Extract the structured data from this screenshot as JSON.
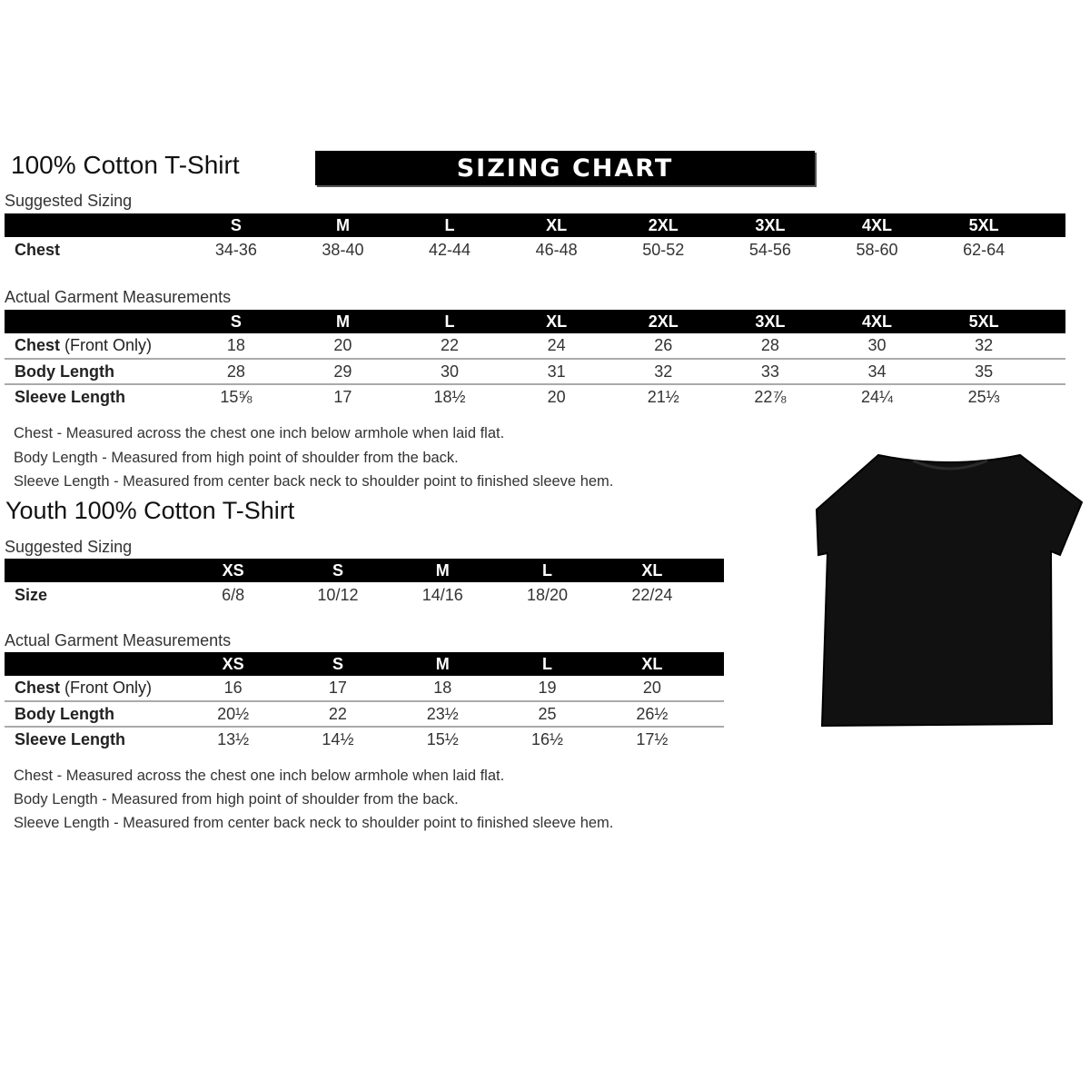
{
  "adult": {
    "title": "100% Cotton T-Shirt",
    "banner": "SIZING CHART",
    "suggested": {
      "label": "Suggested Sizing",
      "sizes": [
        "S",
        "M",
        "L",
        "XL",
        "2XL",
        "3XL",
        "4XL",
        "5XL"
      ],
      "rows": [
        {
          "label": "Chest",
          "values": [
            "34-36",
            "38-40",
            "42-44",
            "46-48",
            "50-52",
            "54-56",
            "58-60",
            "62-64"
          ]
        }
      ]
    },
    "actual": {
      "label": "Actual Garment Measurements",
      "sizes": [
        "S",
        "M",
        "L",
        "XL",
        "2XL",
        "3XL",
        "4XL",
        "5XL"
      ],
      "rows": [
        {
          "label": "Chest",
          "label_note": "(Front Only)",
          "values": [
            "18",
            "20",
            "22",
            "24",
            "26",
            "28",
            "30",
            "32"
          ]
        },
        {
          "label": "Body Length",
          "values": [
            "28",
            "29",
            "30",
            "31",
            "32",
            "33",
            "34",
            "35"
          ]
        },
        {
          "label": "Sleeve Length",
          "values": [
            "15⅝",
            "17",
            "18½",
            "20",
            "21½",
            "22⅞",
            "24¼",
            "25⅓"
          ]
        }
      ]
    },
    "notes": [
      "Chest - Measured across the chest one inch below armhole when laid flat.",
      "Body Length - Measured from high point of shoulder from the back.",
      "Sleeve Length - Measured from center back neck to shoulder point to finished sleeve hem."
    ]
  },
  "youth": {
    "title": "Youth 100% Cotton T-Shirt",
    "suggested": {
      "label": "Suggested Sizing",
      "sizes": [
        "XS",
        "S",
        "M",
        "L",
        "XL"
      ],
      "rows": [
        {
          "label": "Size",
          "values": [
            "6/8",
            "10/12",
            "14/16",
            "18/20",
            "22/24"
          ]
        }
      ]
    },
    "actual": {
      "label": "Actual Garment Measurements",
      "sizes": [
        "XS",
        "S",
        "M",
        "L",
        "XL"
      ],
      "rows": [
        {
          "label": "Chest",
          "label_note": "(Front Only)",
          "values": [
            "16",
            "17",
            "18",
            "19",
            "20"
          ]
        },
        {
          "label": "Body Length",
          "values": [
            "20½",
            "22",
            "23½",
            "25",
            "26½"
          ]
        },
        {
          "label": "Sleeve Length",
          "values": [
            "13½",
            "14½",
            "15½",
            "16½",
            "17½"
          ]
        }
      ]
    },
    "notes": [
      "Chest - Measured across the chest one inch below armhole when laid flat.",
      "Body Length - Measured from high point of shoulder from the back.",
      "Sleeve Length - Measured from center back neck to shoulder point to finished sleeve hem."
    ]
  },
  "image": {
    "icon": "black-tshirt-icon",
    "color": "#111111"
  }
}
